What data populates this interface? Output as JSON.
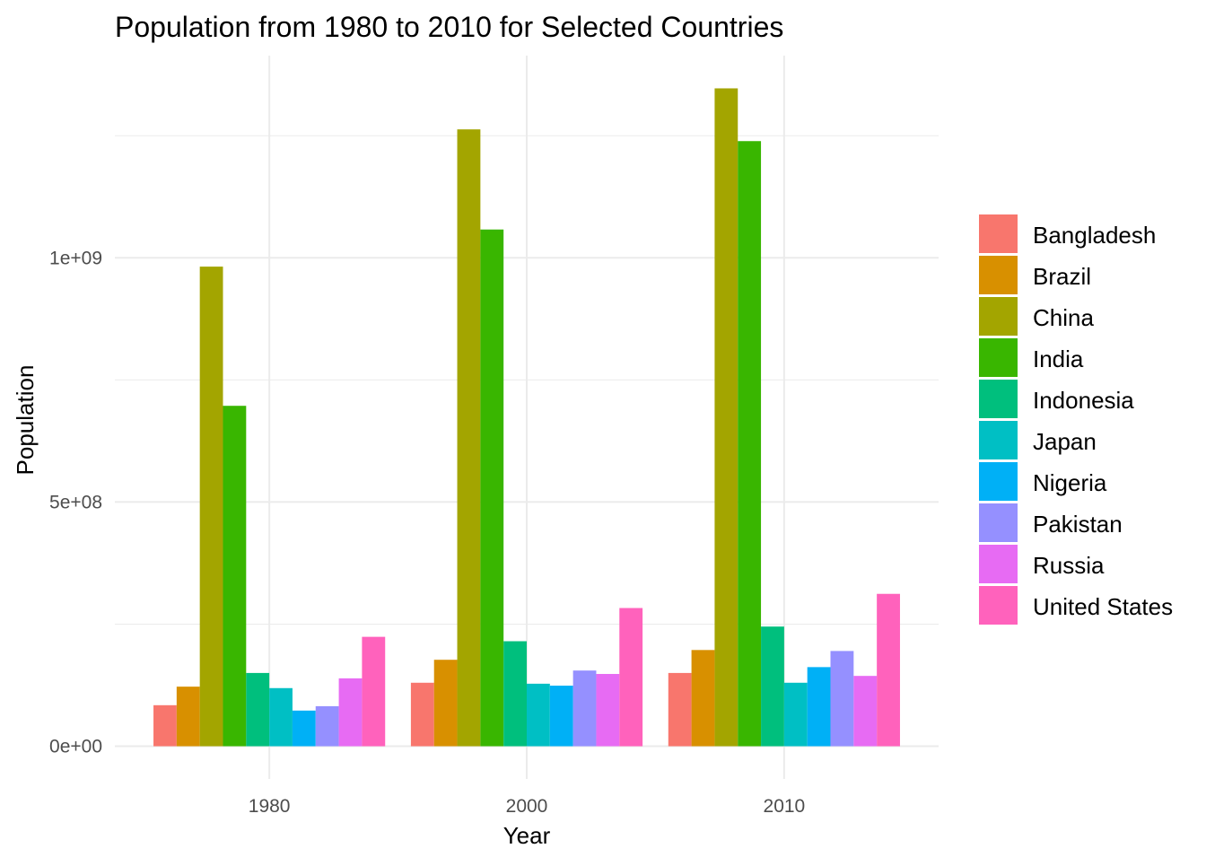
{
  "chart_data": {
    "type": "bar",
    "title": "Population from 1980 to 2010 for Selected Countries",
    "xlabel": "Year",
    "ylabel": "Population",
    "categories": [
      "1980",
      "2000",
      "2010"
    ],
    "ylim": [
      -67000000,
      1414000000
    ],
    "yticks": [
      0,
      500000000,
      1000000000
    ],
    "ytick_labels": [
      "0e+00",
      "5e+08",
      "1e+09"
    ],
    "grid": true,
    "legend_position": "right",
    "series": [
      {
        "name": "Bangladesh",
        "color": "#F8766D",
        "values": [
          84000000,
          130000000,
          150000000
        ]
      },
      {
        "name": "Brazil",
        "color": "#D89000",
        "values": [
          122000000,
          177000000,
          197000000
        ]
      },
      {
        "name": "China",
        "color": "#A3A500",
        "values": [
          982000000,
          1263000000,
          1347000000
        ]
      },
      {
        "name": "India",
        "color": "#39B600",
        "values": [
          697000000,
          1058000000,
          1239000000
        ]
      },
      {
        "name": "Indonesia",
        "color": "#00BF7D",
        "values": [
          150000000,
          215000000,
          245000000
        ]
      },
      {
        "name": "Japan",
        "color": "#00BFC4",
        "values": [
          119000000,
          128000000,
          130000000
        ]
      },
      {
        "name": "Nigeria",
        "color": "#00B0F6",
        "values": [
          73000000,
          124000000,
          162000000
        ]
      },
      {
        "name": "Pakistan",
        "color": "#9590FF",
        "values": [
          82000000,
          155000000,
          195000000
        ]
      },
      {
        "name": "Russia",
        "color": "#E76BF3",
        "values": [
          139000000,
          148000000,
          144000000
        ]
      },
      {
        "name": "United States",
        "color": "#FF62BC",
        "values": [
          224000000,
          283000000,
          312000000
        ]
      }
    ]
  }
}
